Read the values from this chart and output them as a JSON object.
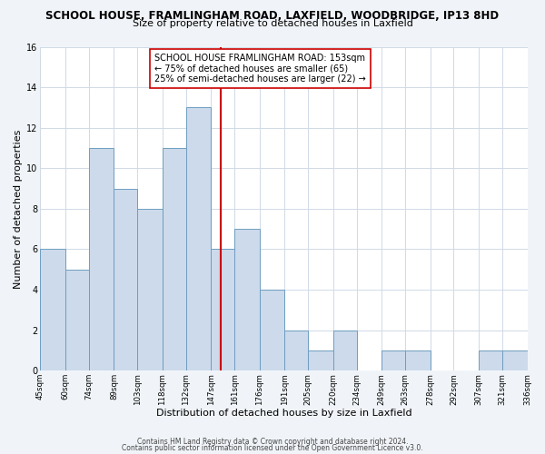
{
  "title": "SCHOOL HOUSE, FRAMLINGHAM ROAD, LAXFIELD, WOODBRIDGE, IP13 8HD",
  "subtitle": "Size of property relative to detached houses in Laxfield",
  "xlabel": "Distribution of detached houses by size in Laxfield",
  "ylabel": "Number of detached properties",
  "bins": [
    45,
    60,
    74,
    89,
    103,
    118,
    132,
    147,
    161,
    176,
    191,
    205,
    220,
    234,
    249,
    263,
    278,
    292,
    307,
    321,
    336
  ],
  "counts": [
    6,
    5,
    11,
    9,
    8,
    11,
    13,
    6,
    7,
    4,
    2,
    1,
    2,
    0,
    1,
    1,
    0,
    0,
    1,
    1
  ],
  "bar_color": "#ccdaeb",
  "bar_edge_color": "#6e9ec0",
  "vline_x": 153,
  "vline_color": "#cc0000",
  "ylim": [
    0,
    16
  ],
  "yticks": [
    0,
    2,
    4,
    6,
    8,
    10,
    12,
    14,
    16
  ],
  "annotation_line1": "SCHOOL HOUSE FRAMLINGHAM ROAD: 153sqm",
  "annotation_line2": "← 75% of detached houses are smaller (65)",
  "annotation_line3": "25% of semi-detached houses are larger (22) →",
  "footer1": "Contains HM Land Registry data © Crown copyright and database right 2024.",
  "footer2": "Contains public sector information licensed under the Open Government Licence v3.0.",
  "tick_labels": [
    "45sqm",
    "60sqm",
    "74sqm",
    "89sqm",
    "103sqm",
    "118sqm",
    "132sqm",
    "147sqm",
    "161sqm",
    "176sqm",
    "191sqm",
    "205sqm",
    "220sqm",
    "234sqm",
    "249sqm",
    "263sqm",
    "278sqm",
    "292sqm",
    "307sqm",
    "321sqm",
    "336sqm"
  ],
  "background_color": "#f0f4f8",
  "plot_background_color": "#ffffff",
  "grid_color": "#d0dae6"
}
